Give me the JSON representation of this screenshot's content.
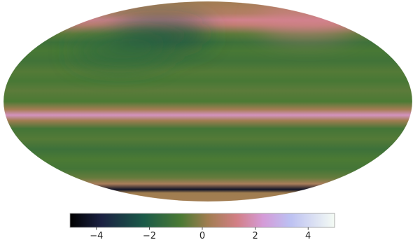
{
  "projection": "mollweide",
  "map": {
    "value_range": [
      -5,
      5
    ],
    "background_value": 0.25,
    "bands": [
      {
        "lat": 72,
        "value": 0.6
      },
      {
        "lat": 65,
        "value": 1.4
      },
      {
        "lat": 60,
        "value": 0.9
      },
      {
        "lat": 52,
        "value": -0.6
      },
      {
        "lat": 45,
        "value": -1.2
      },
      {
        "lat": 38,
        "value": -0.9
      },
      {
        "lat": 30,
        "value": -1.1
      },
      {
        "lat": 22,
        "value": -0.7
      },
      {
        "lat": 15,
        "value": -0.9
      },
      {
        "lat": 8,
        "value": -0.6
      },
      {
        "lat": 0,
        "value": -0.8
      },
      {
        "lat": -6,
        "value": 0.3
      },
      {
        "lat": -10,
        "value": 2.0
      },
      {
        "lat": -14,
        "value": 0.2
      },
      {
        "lat": -20,
        "value": -1.0
      },
      {
        "lat": -28,
        "value": -0.7
      },
      {
        "lat": -36,
        "value": -1.2
      },
      {
        "lat": -44,
        "value": -0.8
      },
      {
        "lat": -52,
        "value": -1.0
      },
      {
        "lat": -60,
        "value": -0.5
      },
      {
        "lat": -66,
        "value": 0.4
      },
      {
        "lat": -72,
        "value": -4.3
      },
      {
        "lat": -76,
        "value": 0.2
      }
    ],
    "blobs": [
      {
        "lon": -55,
        "lat": 52,
        "value": -2.6
      },
      {
        "lon": -90,
        "lat": 38,
        "value": -1.6
      },
      {
        "lon": 150,
        "lat": 65,
        "value": 1.4
      }
    ]
  },
  "colorbar": {
    "min": -5,
    "max": 5,
    "ticks": [
      {
        "value": -4,
        "label": "−4"
      },
      {
        "value": -2,
        "label": "−2"
      },
      {
        "value": 0,
        "label": "0"
      },
      {
        "value": 2,
        "label": "2"
      },
      {
        "value": 4,
        "label": "4"
      }
    ],
    "colormap": [
      {
        "value": -5,
        "color": "#000000"
      },
      {
        "value": -3.8,
        "color": "#1b2142"
      },
      {
        "value": -2.2,
        "color": "#1a5a48"
      },
      {
        "value": -0.8,
        "color": "#4b7a34"
      },
      {
        "value": 0.2,
        "color": "#a07d50"
      },
      {
        "value": 1.3,
        "color": "#d27f85"
      },
      {
        "value": 2.3,
        "color": "#d59bd8"
      },
      {
        "value": 3.3,
        "color": "#bcc0f2"
      },
      {
        "value": 5,
        "color": "#f4fbf4"
      }
    ]
  }
}
